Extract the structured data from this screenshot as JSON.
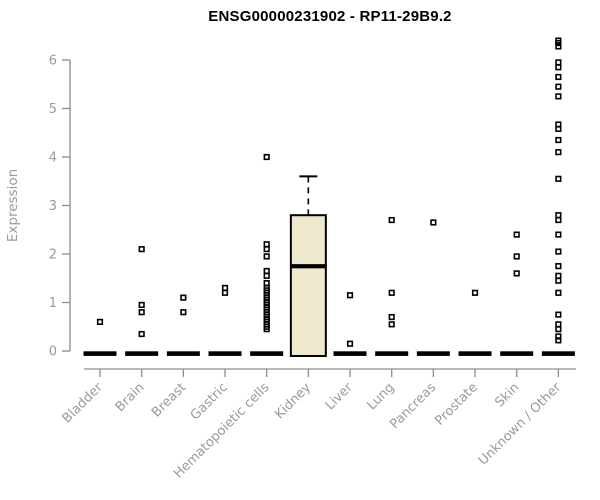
{
  "title": "ENSG00000231902 - RP11-29B9.2",
  "chart_data": {
    "type": "boxplot",
    "title": "ENSG00000231902 - RP11-29B9.2",
    "xlabel": "",
    "ylabel": "Expression",
    "ylim": [
      0,
      6.5
    ],
    "yticks": [
      0,
      1,
      2,
      3,
      4,
      5,
      6
    ],
    "grid": false,
    "legend": false,
    "point_style": "open-square",
    "categories": [
      "Bladder",
      "Brain",
      "Breast",
      "Gastric",
      "Hematopoietic cells",
      "Kidney",
      "Liver",
      "Lung",
      "Pancreas",
      "Prostate",
      "Skin",
      "Unknown / Other"
    ],
    "series": [
      {
        "category": "Bladder",
        "zero_bar": true,
        "points": [
          0.6
        ]
      },
      {
        "category": "Brain",
        "zero_bar": true,
        "points": [
          2.1,
          0.95,
          0.8,
          0.35
        ]
      },
      {
        "category": "Breast",
        "zero_bar": true,
        "points": [
          1.1,
          0.8
        ]
      },
      {
        "category": "Gastric",
        "zero_bar": true,
        "points": [
          1.3,
          1.2
        ]
      },
      {
        "category": "Hematopoietic cells",
        "zero_bar": true,
        "points": [
          4.0,
          2.2,
          2.1,
          1.95,
          1.65,
          1.55,
          1.4,
          1.3,
          1.25,
          1.2,
          1.15,
          1.1,
          1.05,
          1.0,
          0.95,
          0.9,
          0.85,
          0.8,
          0.75,
          0.7,
          0.65,
          0.6,
          0.55,
          0.5,
          0.45
        ]
      },
      {
        "category": "Kidney",
        "zero_bar": false,
        "box": {
          "q1": 0,
          "median": 1.75,
          "q3": 2.8,
          "whisker_high": 3.6
        },
        "points": []
      },
      {
        "category": "Liver",
        "zero_bar": true,
        "points": [
          1.15,
          0.15
        ]
      },
      {
        "category": "Lung",
        "zero_bar": true,
        "points": [
          2.7,
          1.2,
          0.7,
          0.55
        ]
      },
      {
        "category": "Pancreas",
        "zero_bar": true,
        "points": [
          2.65
        ]
      },
      {
        "category": "Prostate",
        "zero_bar": true,
        "points": [
          1.2
        ]
      },
      {
        "category": "Skin",
        "zero_bar": true,
        "points": [
          2.4,
          1.95,
          1.6
        ]
      },
      {
        "category": "Unknown / Other",
        "zero_bar": true,
        "points": [
          6.4,
          6.35,
          6.28,
          5.95,
          5.85,
          5.65,
          5.45,
          5.25,
          4.67,
          4.58,
          4.35,
          4.1,
          3.55,
          2.8,
          2.7,
          2.4,
          2.05,
          1.75,
          1.55,
          1.45,
          1.2,
          0.75,
          0.55,
          0.45,
          0.3,
          0.22
        ]
      }
    ],
    "colors": {
      "box_fill": "#EEE8CD",
      "box_border": "#000000",
      "axis_line": "#8C8C8C",
      "tick_label": "#9A9A9A",
      "point": "#000000",
      "zero_bar": "#000000",
      "title": "#000000"
    }
  }
}
